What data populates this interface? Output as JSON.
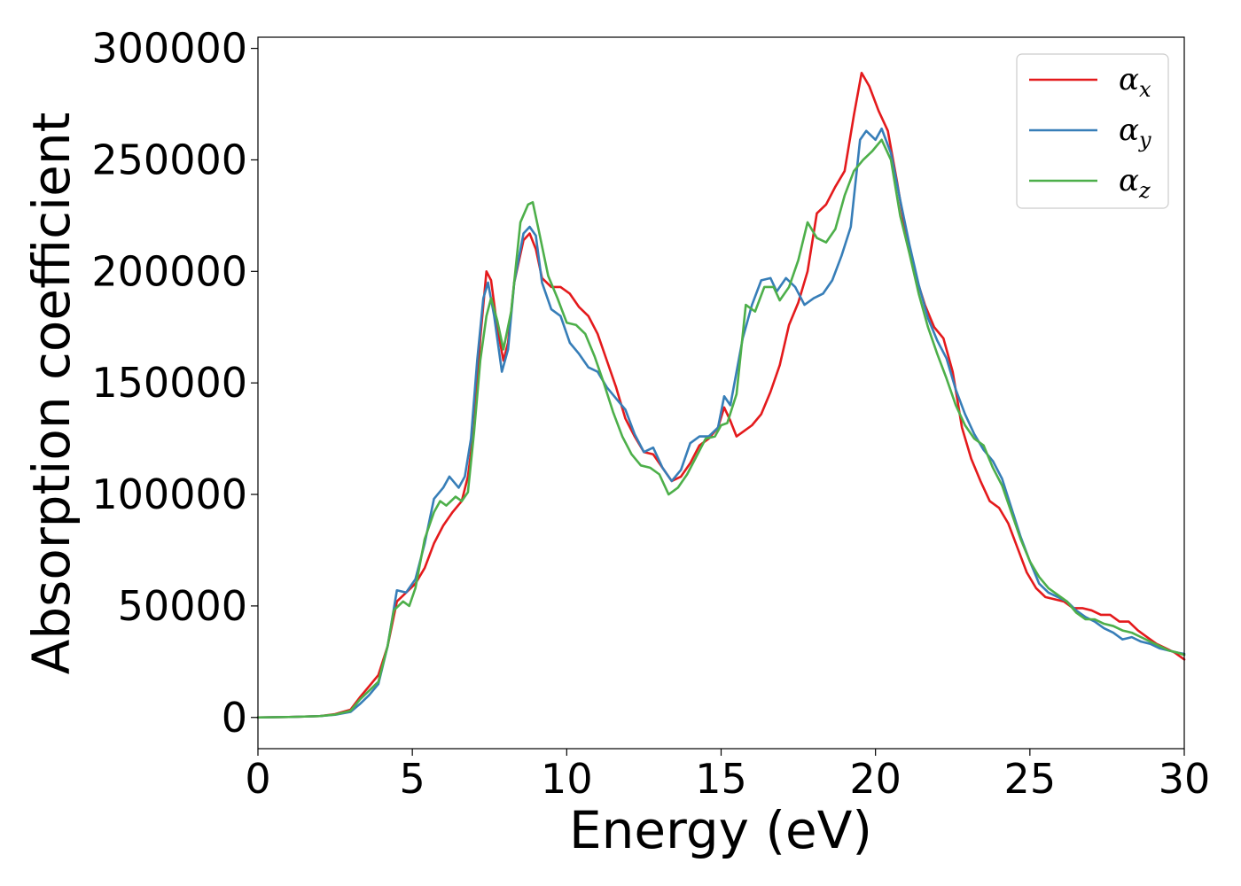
{
  "chart_data": {
    "type": "line",
    "title": "",
    "xlabel": "Energy (eV)",
    "ylabel": "Absorption coefficient",
    "xlim": [
      0,
      30
    ],
    "ylim": [
      -14000,
      305000
    ],
    "xticks": [
      0,
      5,
      10,
      15,
      20,
      25,
      30
    ],
    "yticks": [
      0,
      50000,
      100000,
      150000,
      200000,
      250000,
      300000
    ],
    "grid": false,
    "legend_position": "top-right",
    "series": [
      {
        "name": "α",
        "subscript": "x",
        "color": "#e41a1c",
        "points": [
          [
            0,
            0
          ],
          [
            1,
            200
          ],
          [
            2,
            600
          ],
          [
            2.5,
            1500
          ],
          [
            3,
            3500
          ],
          [
            3.3,
            9000
          ],
          [
            3.6,
            14000
          ],
          [
            3.9,
            19000
          ],
          [
            4.2,
            32000
          ],
          [
            4.5,
            52000
          ],
          [
            4.8,
            56000
          ],
          [
            5.1,
            60000
          ],
          [
            5.4,
            67000
          ],
          [
            5.7,
            78000
          ],
          [
            6.0,
            86000
          ],
          [
            6.3,
            92000
          ],
          [
            6.6,
            97000
          ],
          [
            6.8,
            108000
          ],
          [
            7.0,
            130000
          ],
          [
            7.2,
            170000
          ],
          [
            7.4,
            200000
          ],
          [
            7.55,
            196000
          ],
          [
            7.75,
            175000
          ],
          [
            7.95,
            160000
          ],
          [
            8.1,
            168000
          ],
          [
            8.3,
            195000
          ],
          [
            8.6,
            214000
          ],
          [
            8.8,
            217000
          ],
          [
            9.0,
            210000
          ],
          [
            9.2,
            197000
          ],
          [
            9.5,
            193000
          ],
          [
            9.8,
            193000
          ],
          [
            10.1,
            190000
          ],
          [
            10.4,
            184000
          ],
          [
            10.7,
            180000
          ],
          [
            11.0,
            172000
          ],
          [
            11.3,
            160000
          ],
          [
            11.6,
            148000
          ],
          [
            11.9,
            134000
          ],
          [
            12.2,
            126000
          ],
          [
            12.5,
            119000
          ],
          [
            12.8,
            118000
          ],
          [
            13.1,
            112000
          ],
          [
            13.4,
            106000
          ],
          [
            13.7,
            108000
          ],
          [
            14.0,
            114000
          ],
          [
            14.3,
            122000
          ],
          [
            14.6,
            125000
          ],
          [
            14.9,
            130000
          ],
          [
            15.1,
            139000
          ],
          [
            15.3,
            133000
          ],
          [
            15.5,
            126000
          ],
          [
            15.7,
            128000
          ],
          [
            16.0,
            131000
          ],
          [
            16.3,
            136000
          ],
          [
            16.6,
            146000
          ],
          [
            16.9,
            158000
          ],
          [
            17.2,
            176000
          ],
          [
            17.5,
            186000
          ],
          [
            17.8,
            200000
          ],
          [
            18.1,
            226000
          ],
          [
            18.4,
            230000
          ],
          [
            18.7,
            238000
          ],
          [
            19.0,
            245000
          ],
          [
            19.3,
            270000
          ],
          [
            19.55,
            289000
          ],
          [
            19.8,
            283000
          ],
          [
            20.1,
            272000
          ],
          [
            20.4,
            263000
          ],
          [
            20.7,
            240000
          ],
          [
            21.0,
            215000
          ],
          [
            21.3,
            198000
          ],
          [
            21.6,
            185000
          ],
          [
            21.9,
            175000
          ],
          [
            22.2,
            170000
          ],
          [
            22.5,
            155000
          ],
          [
            22.8,
            130000
          ],
          [
            23.1,
            116000
          ],
          [
            23.4,
            106000
          ],
          [
            23.7,
            97000
          ],
          [
            24.0,
            94000
          ],
          [
            24.3,
            87000
          ],
          [
            24.6,
            76000
          ],
          [
            24.9,
            65000
          ],
          [
            25.2,
            58000
          ],
          [
            25.5,
            54000
          ],
          [
            25.8,
            53000
          ],
          [
            26.1,
            52000
          ],
          [
            26.4,
            49000
          ],
          [
            26.7,
            49000
          ],
          [
            27.0,
            48000
          ],
          [
            27.3,
            46000
          ],
          [
            27.6,
            46000
          ],
          [
            27.9,
            43000
          ],
          [
            28.2,
            43000
          ],
          [
            28.5,
            39000
          ],
          [
            28.8,
            36000
          ],
          [
            29.1,
            33000
          ],
          [
            29.4,
            31000
          ],
          [
            29.7,
            29000
          ],
          [
            30.0,
            26000
          ]
        ]
      },
      {
        "name": "α",
        "subscript": "y",
        "color": "#377eb8",
        "points": [
          [
            0,
            0
          ],
          [
            1,
            200
          ],
          [
            2,
            600
          ],
          [
            2.5,
            1200
          ],
          [
            3,
            2500
          ],
          [
            3.3,
            6000
          ],
          [
            3.6,
            10000
          ],
          [
            3.9,
            15000
          ],
          [
            4.2,
            32000
          ],
          [
            4.5,
            57000
          ],
          [
            4.8,
            56000
          ],
          [
            5.1,
            62000
          ],
          [
            5.4,
            78000
          ],
          [
            5.7,
            98000
          ],
          [
            6.0,
            103000
          ],
          [
            6.2,
            108000
          ],
          [
            6.5,
            103000
          ],
          [
            6.7,
            108000
          ],
          [
            6.9,
            125000
          ],
          [
            7.1,
            160000
          ],
          [
            7.3,
            188000
          ],
          [
            7.45,
            195000
          ],
          [
            7.65,
            180000
          ],
          [
            7.9,
            155000
          ],
          [
            8.1,
            165000
          ],
          [
            8.3,
            195000
          ],
          [
            8.6,
            217000
          ],
          [
            8.8,
            220000
          ],
          [
            9.0,
            216000
          ],
          [
            9.2,
            195000
          ],
          [
            9.5,
            183000
          ],
          [
            9.8,
            180000
          ],
          [
            10.1,
            168000
          ],
          [
            10.4,
            163000
          ],
          [
            10.7,
            157000
          ],
          [
            11.0,
            155000
          ],
          [
            11.3,
            148000
          ],
          [
            11.6,
            143000
          ],
          [
            11.9,
            138000
          ],
          [
            12.2,
            127000
          ],
          [
            12.5,
            119000
          ],
          [
            12.8,
            121000
          ],
          [
            13.1,
            112000
          ],
          [
            13.4,
            106000
          ],
          [
            13.7,
            111000
          ],
          [
            14.0,
            123000
          ],
          [
            14.3,
            126000
          ],
          [
            14.6,
            126000
          ],
          [
            14.9,
            130000
          ],
          [
            15.1,
            144000
          ],
          [
            15.3,
            140000
          ],
          [
            15.5,
            155000
          ],
          [
            15.7,
            170000
          ],
          [
            16.0,
            185000
          ],
          [
            16.3,
            196000
          ],
          [
            16.6,
            197000
          ],
          [
            16.8,
            191000
          ],
          [
            17.1,
            197000
          ],
          [
            17.4,
            193000
          ],
          [
            17.7,
            185000
          ],
          [
            18.0,
            188000
          ],
          [
            18.3,
            190000
          ],
          [
            18.6,
            196000
          ],
          [
            18.9,
            207000
          ],
          [
            19.2,
            220000
          ],
          [
            19.5,
            259000
          ],
          [
            19.7,
            263000
          ],
          [
            20.0,
            259000
          ],
          [
            20.2,
            264000
          ],
          [
            20.5,
            253000
          ],
          [
            20.8,
            232000
          ],
          [
            21.1,
            212000
          ],
          [
            21.4,
            194000
          ],
          [
            21.7,
            179000
          ],
          [
            22.0,
            169000
          ],
          [
            22.3,
            161000
          ],
          [
            22.6,
            147000
          ],
          [
            22.9,
            136000
          ],
          [
            23.2,
            127000
          ],
          [
            23.5,
            120000
          ],
          [
            23.8,
            115000
          ],
          [
            24.1,
            107000
          ],
          [
            24.4,
            94000
          ],
          [
            24.7,
            81000
          ],
          [
            25.0,
            70000
          ],
          [
            25.3,
            60000
          ],
          [
            25.6,
            56000
          ],
          [
            25.9,
            54000
          ],
          [
            26.2,
            52000
          ],
          [
            26.5,
            48000
          ],
          [
            26.8,
            45000
          ],
          [
            27.1,
            43000
          ],
          [
            27.4,
            40000
          ],
          [
            27.7,
            38000
          ],
          [
            28.0,
            35000
          ],
          [
            28.3,
            36000
          ],
          [
            28.6,
            34000
          ],
          [
            28.9,
            33000
          ],
          [
            29.2,
            31000
          ],
          [
            29.5,
            30000
          ],
          [
            29.8,
            29000
          ],
          [
            30.0,
            28500
          ]
        ]
      },
      {
        "name": "α",
        "subscript": "z",
        "color": "#4daf4a",
        "points": [
          [
            0,
            0
          ],
          [
            1,
            200
          ],
          [
            2,
            600
          ],
          [
            2.5,
            1300
          ],
          [
            3,
            3000
          ],
          [
            3.3,
            8000
          ],
          [
            3.6,
            12000
          ],
          [
            3.9,
            16000
          ],
          [
            4.2,
            32000
          ],
          [
            4.4,
            48000
          ],
          [
            4.7,
            52000
          ],
          [
            4.9,
            50000
          ],
          [
            5.1,
            58000
          ],
          [
            5.4,
            80000
          ],
          [
            5.7,
            92000
          ],
          [
            5.9,
            97000
          ],
          [
            6.1,
            95000
          ],
          [
            6.4,
            99000
          ],
          [
            6.6,
            97000
          ],
          [
            6.8,
            101000
          ],
          [
            7.0,
            128000
          ],
          [
            7.2,
            160000
          ],
          [
            7.4,
            180000
          ],
          [
            7.55,
            188000
          ],
          [
            7.75,
            178000
          ],
          [
            7.95,
            165000
          ],
          [
            8.2,
            182000
          ],
          [
            8.5,
            222000
          ],
          [
            8.75,
            230000
          ],
          [
            8.9,
            231000
          ],
          [
            9.1,
            218000
          ],
          [
            9.4,
            198000
          ],
          [
            9.7,
            188000
          ],
          [
            10.0,
            177000
          ],
          [
            10.3,
            176000
          ],
          [
            10.6,
            172000
          ],
          [
            10.9,
            162000
          ],
          [
            11.2,
            150000
          ],
          [
            11.5,
            137000
          ],
          [
            11.8,
            126000
          ],
          [
            12.1,
            118000
          ],
          [
            12.4,
            113000
          ],
          [
            12.7,
            112000
          ],
          [
            13.0,
            109000
          ],
          [
            13.3,
            100000
          ],
          [
            13.6,
            103000
          ],
          [
            13.9,
            109000
          ],
          [
            14.2,
            117000
          ],
          [
            14.5,
            125000
          ],
          [
            14.8,
            126000
          ],
          [
            15.0,
            131000
          ],
          [
            15.2,
            132000
          ],
          [
            15.5,
            145000
          ],
          [
            15.8,
            185000
          ],
          [
            16.1,
            182000
          ],
          [
            16.4,
            193000
          ],
          [
            16.7,
            193000
          ],
          [
            16.9,
            187000
          ],
          [
            17.2,
            193000
          ],
          [
            17.5,
            205000
          ],
          [
            17.8,
            222000
          ],
          [
            18.1,
            215000
          ],
          [
            18.4,
            213000
          ],
          [
            18.7,
            219000
          ],
          [
            19.0,
            234000
          ],
          [
            19.3,
            245000
          ],
          [
            19.6,
            250000
          ],
          [
            19.9,
            254000
          ],
          [
            20.2,
            259000
          ],
          [
            20.5,
            250000
          ],
          [
            20.8,
            225000
          ],
          [
            21.1,
            208000
          ],
          [
            21.4,
            190000
          ],
          [
            21.7,
            175000
          ],
          [
            22.0,
            163000
          ],
          [
            22.3,
            152000
          ],
          [
            22.6,
            140000
          ],
          [
            22.9,
            131000
          ],
          [
            23.2,
            125000
          ],
          [
            23.5,
            122000
          ],
          [
            23.8,
            112000
          ],
          [
            24.1,
            104000
          ],
          [
            24.4,
            92000
          ],
          [
            24.7,
            80000
          ],
          [
            25.0,
            70000
          ],
          [
            25.3,
            63000
          ],
          [
            25.6,
            58000
          ],
          [
            25.9,
            55000
          ],
          [
            26.2,
            52000
          ],
          [
            26.5,
            47000
          ],
          [
            26.8,
            44000
          ],
          [
            27.1,
            44000
          ],
          [
            27.4,
            42000
          ],
          [
            27.7,
            41000
          ],
          [
            28.0,
            39000
          ],
          [
            28.3,
            38000
          ],
          [
            28.6,
            36000
          ],
          [
            28.9,
            34000
          ],
          [
            29.2,
            32000
          ],
          [
            29.5,
            30000
          ],
          [
            29.8,
            29000
          ],
          [
            30.0,
            28000
          ]
        ]
      }
    ]
  }
}
